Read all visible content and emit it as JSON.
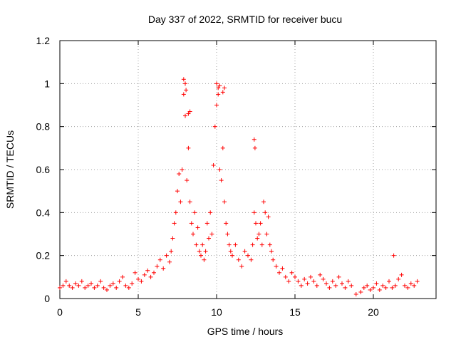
{
  "chart_data": {
    "type": "scatter",
    "title": "Day 337 of 2022, SRMTID for receiver bucu",
    "xlabel": "GPS time / hours",
    "ylabel": "SRMTID / TECUs",
    "xlim": [
      0,
      24
    ],
    "ylim": [
      0,
      1.2
    ],
    "xticks": [
      0,
      5,
      10,
      15,
      20
    ],
    "yticks": [
      0,
      0.2,
      0.4,
      0.6,
      0.8,
      1,
      1.2
    ],
    "ytick_labels": [
      "0",
      "0.2",
      "0.4",
      "0.6",
      "0.8",
      "1",
      "1.2"
    ],
    "grid": true,
    "marker": "+",
    "series": [
      {
        "name": "SRMTID",
        "color": "#ff0000",
        "x": [
          0.0,
          0.2,
          0.4,
          0.6,
          0.8,
          1.0,
          1.2,
          1.4,
          1.6,
          1.8,
          2.0,
          2.2,
          2.4,
          2.6,
          2.8,
          3.0,
          3.2,
          3.4,
          3.6,
          3.8,
          4.0,
          4.2,
          4.4,
          4.6,
          4.8,
          5.0,
          5.2,
          5.4,
          5.6,
          5.8,
          6.0,
          6.2,
          6.4,
          6.6,
          6.8,
          7.0,
          7.1,
          7.2,
          7.3,
          7.4,
          7.5,
          7.6,
          7.7,
          7.8,
          7.9,
          8.0,
          8.1,
          8.2,
          8.3,
          8.4,
          8.5,
          8.6,
          8.7,
          8.8,
          8.9,
          9.0,
          9.1,
          9.2,
          9.3,
          9.4,
          9.5,
          9.6,
          9.7,
          9.8,
          9.9,
          10.0,
          10.1,
          10.2,
          10.3,
          10.4,
          10.5,
          10.6,
          10.7,
          10.8,
          10.9,
          11.0,
          11.2,
          11.4,
          11.6,
          11.8,
          12.0,
          12.2,
          12.3,
          12.4,
          12.5,
          12.6,
          12.7,
          12.8,
          12.9,
          13.0,
          13.1,
          13.2,
          13.3,
          13.4,
          13.5,
          13.6,
          13.8,
          14.0,
          14.2,
          14.4,
          14.6,
          14.8,
          15.0,
          15.2,
          15.4,
          15.6,
          15.8,
          16.0,
          16.2,
          16.4,
          16.6,
          16.8,
          17.0,
          17.2,
          17.4,
          17.6,
          17.8,
          18.0,
          18.2,
          18.4,
          18.6,
          18.9,
          19.2,
          19.4,
          19.6,
          19.8,
          20.0,
          20.2,
          20.4,
          20.6,
          20.8,
          21.0,
          21.2,
          21.4,
          21.6,
          21.8,
          22.0,
          22.2,
          22.4,
          22.6,
          22.8,
          7.9,
          8.0,
          8.05,
          10.0,
          10.1,
          10.2,
          10.4,
          10.5,
          8.2,
          8.3,
          12.4,
          12.45,
          21.3
        ],
        "y": [
          0.05,
          0.06,
          0.08,
          0.06,
          0.05,
          0.07,
          0.06,
          0.08,
          0.05,
          0.06,
          0.07,
          0.05,
          0.06,
          0.08,
          0.05,
          0.04,
          0.06,
          0.07,
          0.05,
          0.08,
          0.1,
          0.06,
          0.05,
          0.07,
          0.12,
          0.09,
          0.08,
          0.11,
          0.13,
          0.1,
          0.12,
          0.15,
          0.18,
          0.14,
          0.2,
          0.17,
          0.22,
          0.28,
          0.35,
          0.4,
          0.5,
          0.58,
          0.45,
          0.6,
          0.95,
          0.85,
          0.55,
          0.7,
          0.45,
          0.35,
          0.3,
          0.4,
          0.25,
          0.33,
          0.22,
          0.2,
          0.25,
          0.18,
          0.22,
          0.35,
          0.28,
          0.4,
          0.3,
          0.62,
          0.8,
          0.9,
          0.95,
          0.6,
          0.55,
          0.7,
          0.45,
          0.35,
          0.3,
          0.25,
          0.22,
          0.2,
          0.25,
          0.18,
          0.15,
          0.22,
          0.2,
          0.18,
          0.25,
          0.4,
          0.35,
          0.28,
          0.3,
          0.35,
          0.25,
          0.45,
          0.4,
          0.3,
          0.38,
          0.25,
          0.22,
          0.18,
          0.15,
          0.12,
          0.14,
          0.1,
          0.08,
          0.12,
          0.1,
          0.08,
          0.06,
          0.09,
          0.07,
          0.1,
          0.08,
          0.06,
          0.11,
          0.09,
          0.07,
          0.05,
          0.08,
          0.06,
          0.1,
          0.07,
          0.05,
          0.08,
          0.06,
          0.02,
          0.03,
          0.05,
          0.06,
          0.04,
          0.05,
          0.07,
          0.04,
          0.06,
          0.05,
          0.08,
          0.05,
          0.06,
          0.09,
          0.11,
          0.06,
          0.05,
          0.07,
          0.06,
          0.08,
          1.02,
          1.0,
          0.97,
          1.0,
          0.98,
          0.99,
          0.96,
          0.98,
          0.86,
          0.87,
          0.74,
          0.7,
          0.2
        ]
      }
    ]
  }
}
